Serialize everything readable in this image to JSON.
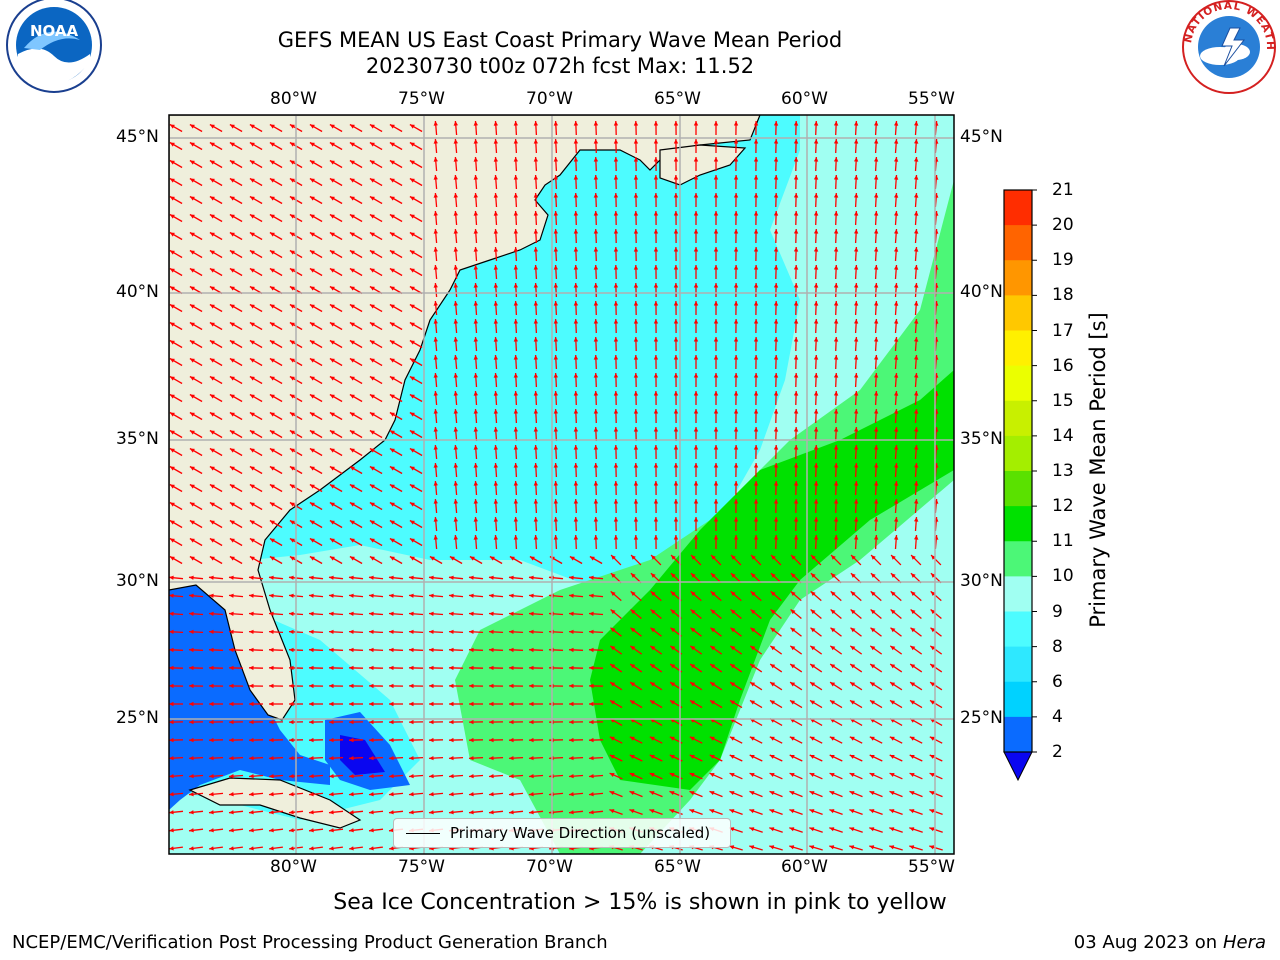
{
  "title": {
    "line1": "GEFS MEAN US East Coast Primary Wave Mean Period",
    "line2": "20230730 t00z 072h fcst   Max: 11.52"
  },
  "logos": {
    "left": "NOAA",
    "right": "NATIONAL WEATHER SERVICE"
  },
  "map": {
    "lon_labels": [
      "80°W",
      "75°W",
      "70°W",
      "65°W",
      "60°W",
      "55°W"
    ],
    "lat_labels": [
      "45°N",
      "40°N",
      "35°N",
      "30°N",
      "25°N"
    ],
    "lon_range": [
      -85,
      -54.5
    ],
    "lat_range": [
      20.5,
      46
    ],
    "legend_label": "Primary Wave Direction (unscaled)",
    "arrow_color": "#ff0000",
    "land_color": "#efefdc"
  },
  "colorbar": {
    "title": "Primary Wave Mean Period [s]",
    "ticks": [
      "2",
      "4",
      "6",
      "8",
      "9",
      "10",
      "11",
      "12",
      "13",
      "14",
      "15",
      "16",
      "17",
      "18",
      "19",
      "20",
      "21"
    ],
    "colors": [
      "#0a6bff",
      "#00d2ff",
      "#2ee8ff",
      "#4dfcff",
      "#a0fff2",
      "#4cf777",
      "#00e100",
      "#5ae100",
      "#a4ee00",
      "#c8f000",
      "#ebff00",
      "#fff000",
      "#ffc800",
      "#ff9600",
      "#ff6400",
      "#ff2d00"
    ],
    "under_color": "#0a06f0"
  },
  "footer": {
    "sea_ice_note": "Sea Ice Concentration > 15% is shown in pink to yellow",
    "producer": "NCEP/EMC/Verification Post Processing Product Generation Branch",
    "date": "03 Aug 2023 on",
    "machine": "Hera"
  }
}
